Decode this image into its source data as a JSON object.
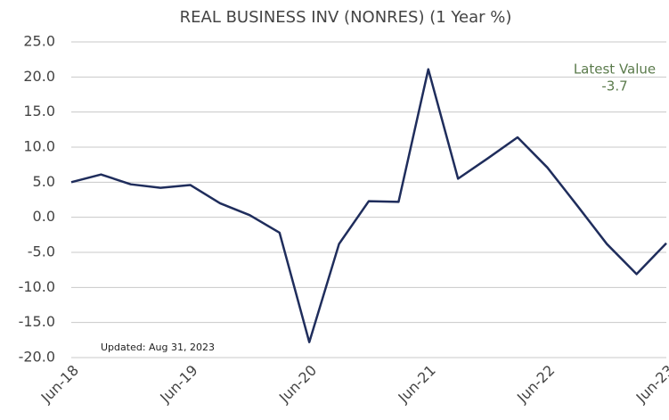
{
  "chart_data": {
    "type": "line",
    "title": "REAL BUSINESS INV (NONRES) (1 Year %)",
    "categories": [
      "Jun-18",
      null,
      null,
      null,
      "Jun-19",
      null,
      null,
      null,
      "Jun-20",
      null,
      null,
      null,
      "Jun-21",
      null,
      null,
      null,
      "Jun-22",
      null,
      null,
      null,
      "Jun-23"
    ],
    "series": [
      {
        "name": "Real Business Inv (Nonres)",
        "color": "#1f2d5c",
        "values": [
          5.0,
          6.1,
          4.7,
          4.2,
          4.6,
          2.0,
          0.3,
          -2.2,
          -17.8,
          -3.8,
          2.3,
          2.2,
          21.1,
          5.5,
          8.4,
          11.4,
          7.1,
          1.7,
          -3.8,
          -8.1,
          -3.7
        ]
      }
    ],
    "ylim": [
      -20,
      25
    ],
    "yticks": [
      {
        "value": -20,
        "label": "-20.0"
      },
      {
        "value": -15,
        "label": "-15.0"
      },
      {
        "value": -10,
        "label": "-10.0"
      },
      {
        "value": -5,
        "label": "-5.0"
      },
      {
        "value": 0,
        "label": "0.0"
      },
      {
        "value": 5,
        "label": "5.0"
      },
      {
        "value": 10,
        "label": "10.0"
      },
      {
        "value": 15,
        "label": "15.0"
      },
      {
        "value": 20,
        "label": "20.0"
      },
      {
        "value": 25,
        "label": "25.0"
      }
    ],
    "grid": true,
    "annotation": {
      "label": "Latest Value",
      "value": -3.7,
      "color": "#5b7b4c"
    },
    "note": "Updated: Aug 31, 2023"
  }
}
